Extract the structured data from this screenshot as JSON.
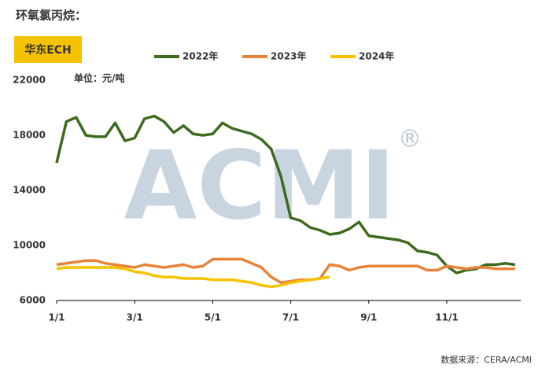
{
  "header": {
    "title": "环氧氯丙烷：",
    "badge": "华东ECH",
    "unit": "单位：元/吨",
    "watermark": "ACMI",
    "registered": "®"
  },
  "footer": {
    "source": "数据来源：CERA/ACMI"
  },
  "chart_data": {
    "type": "line",
    "categories": [
      "1/1",
      null,
      null,
      null,
      null,
      null,
      null,
      null,
      "3/1",
      null,
      null,
      null,
      null,
      null,
      null,
      null,
      "5/1",
      null,
      null,
      null,
      null,
      null,
      null,
      null,
      "7/1",
      null,
      null,
      null,
      null,
      null,
      null,
      null,
      "9/1",
      null,
      null,
      null,
      null,
      null,
      null,
      null,
      "11/1",
      null,
      null,
      null,
      null,
      null,
      null,
      null
    ],
    "series": [
      {
        "name": "2022年",
        "color": "#3d6b1e",
        "values": [
          16000,
          19000,
          19300,
          18000,
          17900,
          17900,
          18900,
          17600,
          17800,
          19200,
          19400,
          19000,
          18200,
          18700,
          18100,
          18000,
          18100,
          18900,
          18500,
          18300,
          18100,
          17700,
          17000,
          15000,
          12000,
          11800,
          11300,
          11100,
          10800,
          10900,
          11200,
          11700,
          10700,
          10600,
          10500,
          10400,
          10200,
          9600,
          9500,
          9300,
          8500,
          8000,
          8200,
          8300,
          8600,
          8600,
          8700,
          8600
        ]
      },
      {
        "name": "2023年",
        "color": "#e8843a",
        "values": [
          8600,
          8700,
          8800,
          8900,
          8900,
          8700,
          8600,
          8500,
          8400,
          8600,
          8500,
          8400,
          8500,
          8600,
          8400,
          8500,
          9000,
          9000,
          9000,
          9000,
          8700,
          8400,
          7700,
          7300,
          7400,
          7500,
          7500,
          7600,
          8600,
          8500,
          8200,
          8400,
          8500,
          8500,
          8500,
          8500,
          8500,
          8500,
          8200,
          8200,
          8500,
          8400,
          8300,
          8400,
          8400,
          8300,
          8300,
          8300
        ]
      },
      {
        "name": "2024年",
        "color": "#f5c200",
        "values": [
          8300,
          8400,
          8400,
          8400,
          8400,
          8400,
          8400,
          8300,
          8100,
          8000,
          7800,
          7700,
          7700,
          7600,
          7600,
          7600,
          7500,
          7500,
          7500,
          7400,
          7300,
          7100,
          7000,
          7100,
          7300,
          7400,
          7500,
          7600,
          7700,
          null,
          null,
          null,
          null,
          null,
          null,
          null,
          null,
          null,
          null,
          null,
          null,
          null,
          null,
          null,
          null,
          null,
          null,
          null
        ]
      }
    ],
    "ylim": [
      6000,
      22000
    ],
    "yticks": [
      6000,
      10000,
      14000,
      18000,
      22000
    ]
  }
}
